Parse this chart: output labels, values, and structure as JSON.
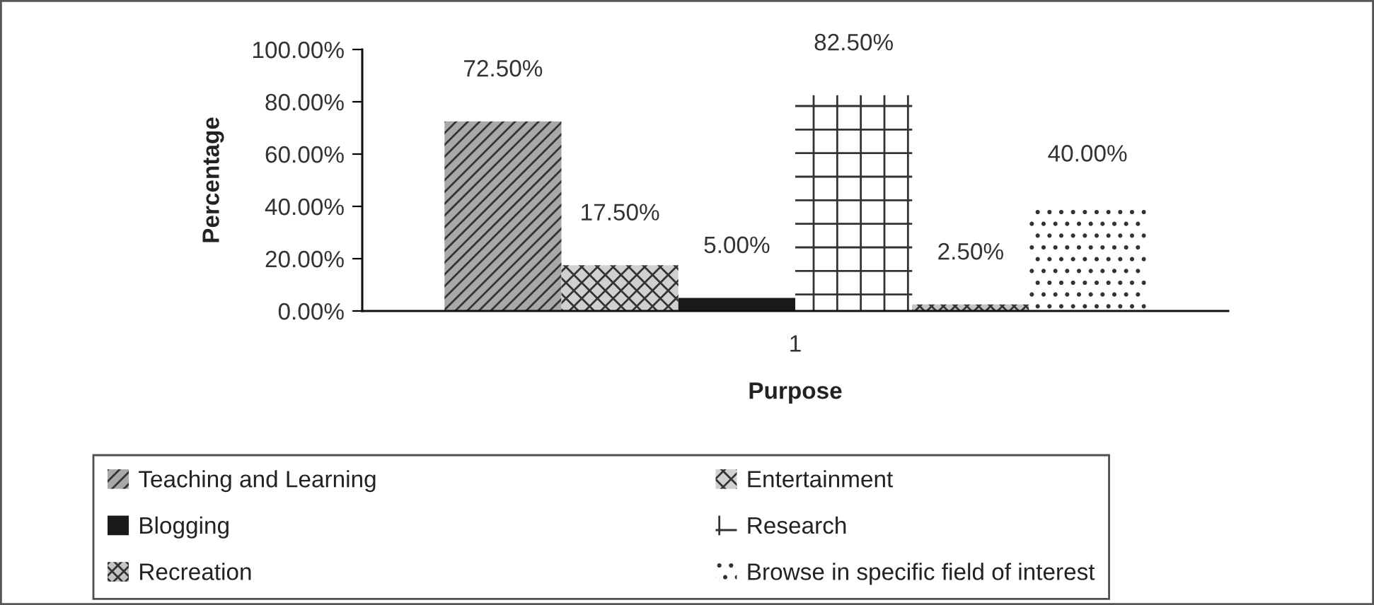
{
  "chart_data": {
    "type": "bar",
    "xlabel": "Purpose",
    "ylabel": "Percentage",
    "categories": [
      "1"
    ],
    "series": [
      {
        "name": "Teaching and Learning",
        "color": "#a8a8a8",
        "values": [
          72.5
        ],
        "value_labels": [
          "72.50%"
        ]
      },
      {
        "name": "Entertainment",
        "color": "#d0d0d0",
        "values": [
          17.5
        ],
        "value_labels": [
          "17.50%"
        ]
      },
      {
        "name": "Blogging",
        "color": "#1a1a1a",
        "values": [
          5.0
        ],
        "value_labels": [
          "5.00%"
        ]
      },
      {
        "name": "Research",
        "color": "#ffffff",
        "values": [
          82.5
        ],
        "value_labels": [
          "82.50%"
        ]
      },
      {
        "name": "Recreation",
        "color": "#c4c4c4",
        "values": [
          2.5
        ],
        "value_labels": [
          "2.50%"
        ]
      },
      {
        "name": "Browse in specific field of interest",
        "color": "#ffffff",
        "values": [
          40.0
        ],
        "value_labels": [
          "40.00%"
        ]
      }
    ],
    "ylim": [
      0,
      100
    ],
    "yticks": [
      {
        "value": 0,
        "label": "0.00%"
      },
      {
        "value": 20,
        "label": "20.00%"
      },
      {
        "value": 40,
        "label": "40.00%"
      },
      {
        "value": 60,
        "label": "60.00%"
      },
      {
        "value": 80,
        "label": "80.00%"
      },
      {
        "value": 100,
        "label": "100.00%"
      }
    ],
    "legend": "bottom"
  }
}
